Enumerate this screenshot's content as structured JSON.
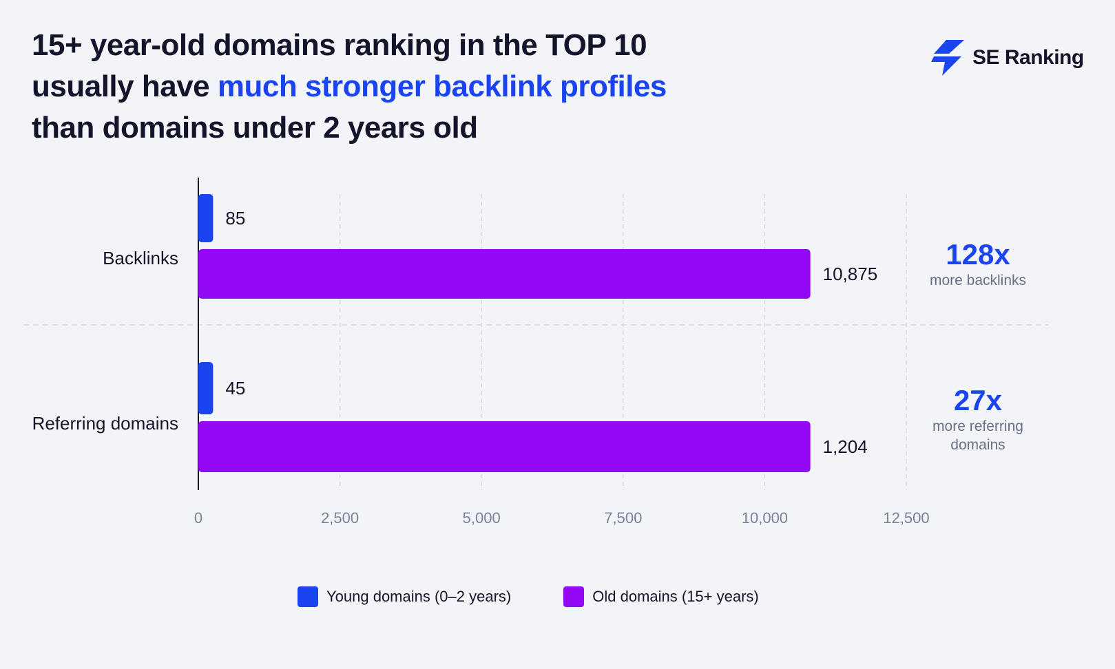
{
  "title": {
    "line1": "15+ year-old domains ranking in the TOP 10",
    "line2_prefix": "usually have ",
    "line2_highlight": "much stronger backlink profiles",
    "line3": "than domains under 2 years old"
  },
  "brand": {
    "name": "SE Ranking",
    "icon": "bolt-logo-icon",
    "color": "#1a44f0"
  },
  "colors": {
    "young": "#1a44f0",
    "old": "#9409f5",
    "multiplier": "#1a44f0",
    "note": "#6b6f85",
    "tick": "#7b7f99"
  },
  "chart_data": {
    "type": "bar",
    "orientation": "horizontal",
    "categories": [
      "Backlinks",
      "Referring domains"
    ],
    "series": [
      {
        "name": "Young domains (0–2 years)",
        "values": [
          85,
          45
        ],
        "labels": [
          "85",
          "45"
        ]
      },
      {
        "name": "Old domains (15+ years)",
        "values": [
          10875,
          1204
        ],
        "labels": [
          "10,875",
          "1,204"
        ]
      }
    ],
    "xlim": [
      0,
      12500
    ],
    "ticks": [
      0,
      2500,
      5000,
      7500,
      10000,
      12500
    ],
    "tick_labels": [
      "0",
      "2,500",
      "5,000",
      "7,500",
      "10,000",
      "12,500"
    ],
    "grid": true,
    "legend_position": "bottom-center",
    "annotations": [
      {
        "value": "128x",
        "note_lines": [
          "more backlinks"
        ]
      },
      {
        "value": "27x",
        "note_lines": [
          "more referring",
          "domains"
        ]
      }
    ]
  }
}
